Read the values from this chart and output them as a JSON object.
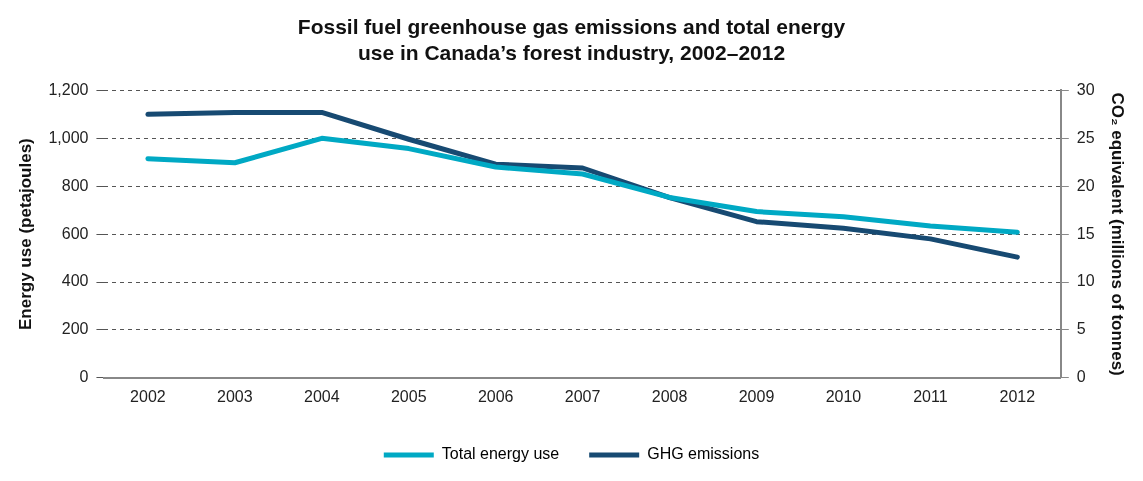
{
  "chart_data": {
    "type": "line",
    "title": "Fossil fuel greenhouse gas emissions and total energy use in Canada’s forest industry, 2002–2012",
    "ylabel": "Energy use (petajoules)",
    "y2label": "CO₂ equivalent (millions of tonnes)",
    "categories": [
      "2002",
      "2003",
      "2004",
      "2005",
      "2006",
      "2007",
      "2008",
      "2009",
      "2010",
      "2011",
      "2012"
    ],
    "series": [
      {
        "name": "Total energy use",
        "color": "#00a9c4",
        "values": [
          915,
          898,
          1000,
          957,
          880,
          851,
          753,
          694,
          672,
          634,
          608
        ]
      },
      {
        "name": "GHG emissions",
        "color": "#174a72",
        "axis": "y2",
        "values": [
          27.5,
          27.7,
          27.7,
          24.9,
          22.3,
          21.9,
          18.8,
          16.3,
          15.6,
          14.5,
          12.6
        ]
      }
    ],
    "ylim": [
      0,
      1200
    ],
    "yticks": [
      0,
      200,
      400,
      600,
      800,
      {
        "value": 1000,
        "label": "1,000"
      },
      {
        "value": 1200,
        "label": "1,200"
      }
    ],
    "y2lim": [
      0,
      30
    ],
    "y2ticks": [
      0,
      5,
      10,
      15,
      20,
      25,
      30
    ],
    "grid": "y",
    "legend": "bottom",
    "marker": "none",
    "line_style": "solid"
  }
}
